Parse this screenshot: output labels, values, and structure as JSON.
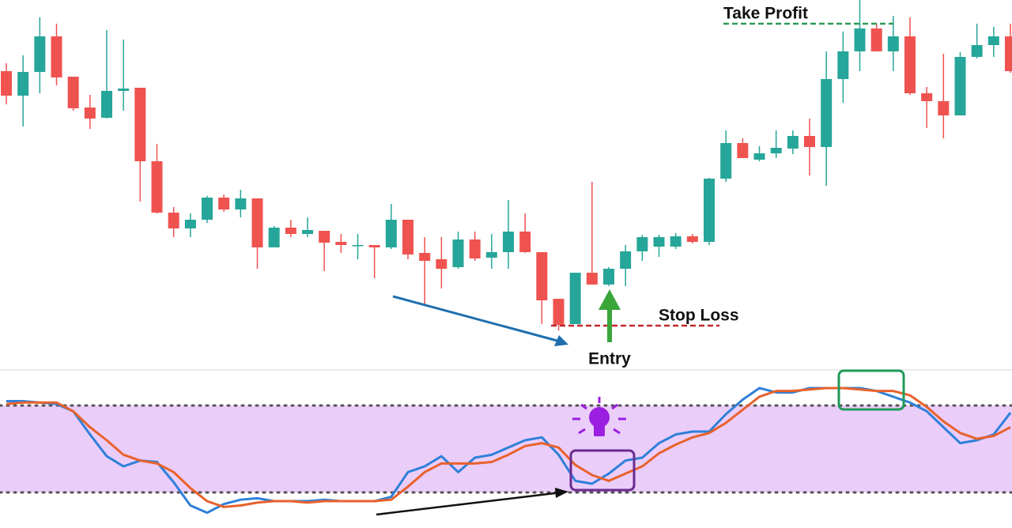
{
  "chart_data": [
    {
      "type": "candlestick",
      "ylim": [
        0,
        470
      ],
      "up_color": "#26a69a",
      "down_color": "#ef5350",
      "open": [
        380,
        349,
        379,
        424,
        373,
        334,
        321,
        355,
        359,
        266,
        201,
        181,
        192,
        220,
        205,
        219,
        157,
        182,
        174,
        178,
        164,
        160,
        160,
        157,
        192,
        150,
        142,
        132,
        167,
        144,
        151,
        177,
        151,
        92,
        60,
        125,
        110,
        130,
        152,
        158,
        158,
        171,
        164,
        244,
        289,
        268,
        276,
        282,
        298,
        284,
        370,
        405,
        434,
        405,
        424,
        352,
        342,
        324,
        398,
        413,
        424
      ],
      "high": [
        390,
        400,
        448,
        440,
        373,
        350,
        432,
        420,
        359,
        288,
        208,
        200,
        222,
        224,
        230,
        219,
        184,
        192,
        195,
        178,
        174,
        174,
        160,
        212,
        192,
        170,
        170,
        177,
        177,
        174,
        217,
        200,
        151,
        92,
        125,
        240,
        132,
        160,
        173,
        173,
        175,
        174,
        245,
        305,
        295,
        285,
        305,
        305,
        320,
        405,
        430,
        470,
        440,
        450,
        448,
        360,
        402,
        404,
        440,
        436,
        440
      ],
      "low": [
        338,
        310,
        352,
        362,
        330,
        307,
        320,
        330,
        215,
        200,
        170,
        170,
        188,
        202,
        195,
        130,
        157,
        170,
        170,
        127,
        150,
        142,
        118,
        155,
        142,
        85,
        105,
        130,
        140,
        130,
        130,
        150,
        60,
        52,
        60,
        110,
        108,
        108,
        140,
        145,
        155,
        162,
        160,
        240,
        270,
        266,
        270,
        275,
        248,
        235,
        340,
        380,
        405,
        380,
        350,
        308,
        295,
        324,
        396,
        398,
        378
      ],
      "close": [
        349,
        379,
        424,
        372,
        333,
        320,
        355,
        358,
        266,
        201,
        181,
        192,
        220,
        205,
        219,
        157,
        182,
        174,
        179,
        163,
        160,
        160,
        157,
        192,
        148,
        140,
        130,
        167,
        143,
        151,
        177,
        151,
        90,
        59,
        125,
        110,
        130,
        152,
        170,
        170,
        171,
        164,
        244,
        289,
        270,
        276,
        283,
        298,
        284,
        370,
        405,
        434,
        405,
        424,
        352,
        342,
        324,
        398,
        413,
        424,
        380
      ],
      "annotations": [
        {
          "label": "Take Profit",
          "value": 440,
          "color": "#2e9b57"
        },
        {
          "label": "Stop Loss",
          "value": 58,
          "color": "#c0282d"
        },
        {
          "label": "Entry"
        }
      ]
    },
    {
      "type": "line",
      "ylim": [
        0,
        100
      ],
      "levels": [
        20,
        80
      ],
      "band_color": "#ebcdfa",
      "series": [
        {
          "color": "#2f80d8",
          "values": [
            83,
            83,
            82,
            81,
            76,
            60,
            45,
            38,
            42,
            41,
            27,
            11,
            6,
            12,
            15,
            16,
            14,
            14,
            14,
            15,
            14,
            14,
            14,
            17,
            34,
            38,
            45,
            34,
            44,
            46,
            51,
            56,
            58,
            46,
            28,
            26,
            33,
            42,
            44,
            54,
            60,
            62,
            62,
            74,
            84,
            92,
            89,
            89,
            92,
            92,
            92,
            92,
            90,
            86,
            82,
            76,
            65,
            54,
            56,
            60,
            75
          ]
        },
        {
          "color": "#e8622c",
          "values": [
            81,
            82,
            82,
            82,
            76,
            65,
            56,
            46,
            42,
            40,
            34,
            23,
            14,
            10,
            11,
            13,
            14,
            14,
            13,
            14,
            14,
            14,
            14,
            15,
            24,
            34,
            40,
            40,
            40,
            41,
            46,
            52,
            54,
            51,
            39,
            32,
            28,
            33,
            38,
            47,
            53,
            58,
            61,
            68,
            77,
            86,
            90,
            90,
            91,
            92,
            92,
            91,
            90,
            90,
            87,
            79,
            69,
            61,
            57,
            59,
            65
          ]
        }
      ]
    }
  ]
}
